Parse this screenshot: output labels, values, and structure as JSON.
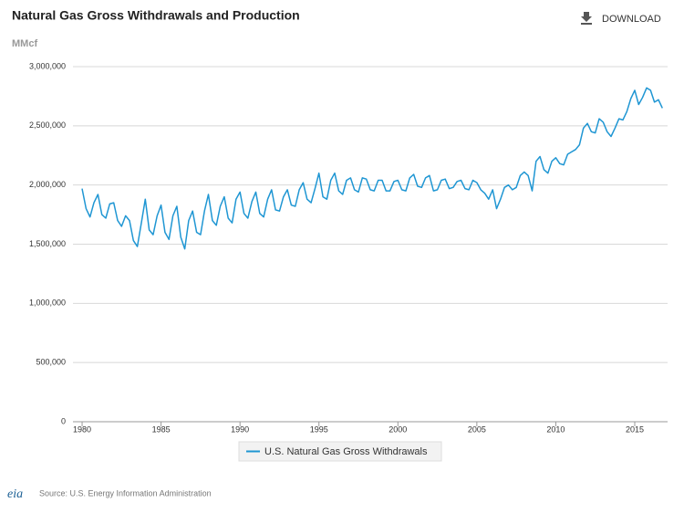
{
  "chart_data": {
    "type": "line",
    "title": "Natural Gas Gross Withdrawals and Production",
    "download": "DOWNLOAD",
    "y_unit": "MMcf",
    "source": "Source: U.S. Energy Information Administration",
    "logo": "eia",
    "x": [
      1980,
      1980.25,
      1980.5,
      1980.75,
      1981,
      1981.25,
      1981.5,
      1981.75,
      1982,
      1982.25,
      1982.5,
      1982.75,
      1983,
      1983.25,
      1983.5,
      1983.75,
      1984,
      1984.25,
      1984.5,
      1984.75,
      1985,
      1985.25,
      1985.5,
      1985.75,
      1986,
      1986.25,
      1986.5,
      1986.75,
      1987,
      1987.25,
      1987.5,
      1987.75,
      1988,
      1988.25,
      1988.5,
      1988.75,
      1989,
      1989.25,
      1989.5,
      1989.75,
      1990,
      1990.25,
      1990.5,
      1990.75,
      1991,
      1991.25,
      1991.5,
      1991.75,
      1992,
      1992.25,
      1992.5,
      1992.75,
      1993,
      1993.25,
      1993.5,
      1993.75,
      1994,
      1994.25,
      1994.5,
      1994.75,
      1995,
      1995.25,
      1995.5,
      1995.75,
      1996,
      1996.25,
      1996.5,
      1996.75,
      1997,
      1997.25,
      1997.5,
      1997.75,
      1998,
      1998.25,
      1998.5,
      1998.75,
      1999,
      1999.25,
      1999.5,
      1999.75,
      2000,
      2000.25,
      2000.5,
      2000.75,
      2001,
      2001.25,
      2001.5,
      2001.75,
      2002,
      2002.25,
      2002.5,
      2002.75,
      2003,
      2003.25,
      2003.5,
      2003.75,
      2004,
      2004.25,
      2004.5,
      2004.75,
      2005,
      2005.25,
      2005.5,
      2005.75,
      2006,
      2006.25,
      2006.5,
      2006.75,
      2007,
      2007.25,
      2007.5,
      2007.75,
      2008,
      2008.25,
      2008.5,
      2008.75,
      2009,
      2009.25,
      2009.5,
      2009.75,
      2010,
      2010.25,
      2010.5,
      2010.75,
      2011,
      2011.25,
      2011.5,
      2011.75,
      2012,
      2012.25,
      2012.5,
      2012.75,
      2013,
      2013.25,
      2013.5,
      2013.75,
      2014,
      2014.25,
      2014.5,
      2014.75,
      2015,
      2015.25,
      2015.5,
      2015.75,
      2016,
      2016.25,
      2016.5,
      2016.75
    ],
    "series": [
      {
        "name": "U.S. Natural Gas Gross Withdrawals",
        "color": "#1f96d3",
        "values": [
          1970000,
          1800000,
          1730000,
          1850000,
          1920000,
          1750000,
          1720000,
          1840000,
          1850000,
          1700000,
          1650000,
          1740000,
          1700000,
          1530000,
          1480000,
          1680000,
          1880000,
          1620000,
          1580000,
          1740000,
          1830000,
          1600000,
          1540000,
          1740000,
          1820000,
          1560000,
          1460000,
          1700000,
          1780000,
          1600000,
          1580000,
          1780000,
          1920000,
          1700000,
          1660000,
          1820000,
          1900000,
          1720000,
          1680000,
          1880000,
          1940000,
          1760000,
          1720000,
          1860000,
          1940000,
          1760000,
          1730000,
          1880000,
          1960000,
          1790000,
          1780000,
          1900000,
          1960000,
          1830000,
          1820000,
          1960000,
          2020000,
          1880000,
          1850000,
          1970000,
          2100000,
          1900000,
          1880000,
          2040000,
          2100000,
          1950000,
          1920000,
          2040000,
          2060000,
          1960000,
          1940000,
          2060000,
          2050000,
          1960000,
          1950000,
          2040000,
          2040000,
          1950000,
          1950000,
          2030000,
          2040000,
          1960000,
          1950000,
          2060000,
          2090000,
          1990000,
          1980000,
          2060000,
          2080000,
          1950000,
          1960000,
          2040000,
          2050000,
          1970000,
          1980000,
          2030000,
          2040000,
          1970000,
          1960000,
          2040000,
          2020000,
          1960000,
          1930000,
          1880000,
          1960000,
          1800000,
          1880000,
          1980000,
          2000000,
          1960000,
          1980000,
          2080000,
          2110000,
          2080000,
          1950000,
          2200000,
          2240000,
          2130000,
          2100000,
          2200000,
          2230000,
          2180000,
          2170000,
          2260000,
          2280000,
          2300000,
          2340000,
          2480000,
          2520000,
          2450000,
          2440000,
          2560000,
          2530000,
          2450000,
          2410000,
          2480000,
          2560000,
          2550000,
          2620000,
          2730000,
          2800000,
          2680000,
          2740000,
          2820000,
          2800000,
          2700000,
          2720000,
          2650000
        ]
      }
    ],
    "xlim": [
      1979.42,
      2017.08
    ],
    "xticks": [
      1980,
      1985,
      1990,
      1995,
      2000,
      2005,
      2010,
      2015
    ],
    "ylim": [
      0,
      3000000
    ],
    "yticks": [
      0,
      {
        "value": 500000,
        "label": "500,000"
      },
      {
        "value": 1000000,
        "label": "1,000,000"
      },
      {
        "value": 1500000,
        "label": "1,500,000"
      },
      {
        "value": 2000000,
        "label": "2,000,000"
      },
      {
        "value": 2500000,
        "label": "2,500,000"
      },
      {
        "value": 3000000,
        "label": "3,000,000"
      }
    ],
    "grid": true
  }
}
